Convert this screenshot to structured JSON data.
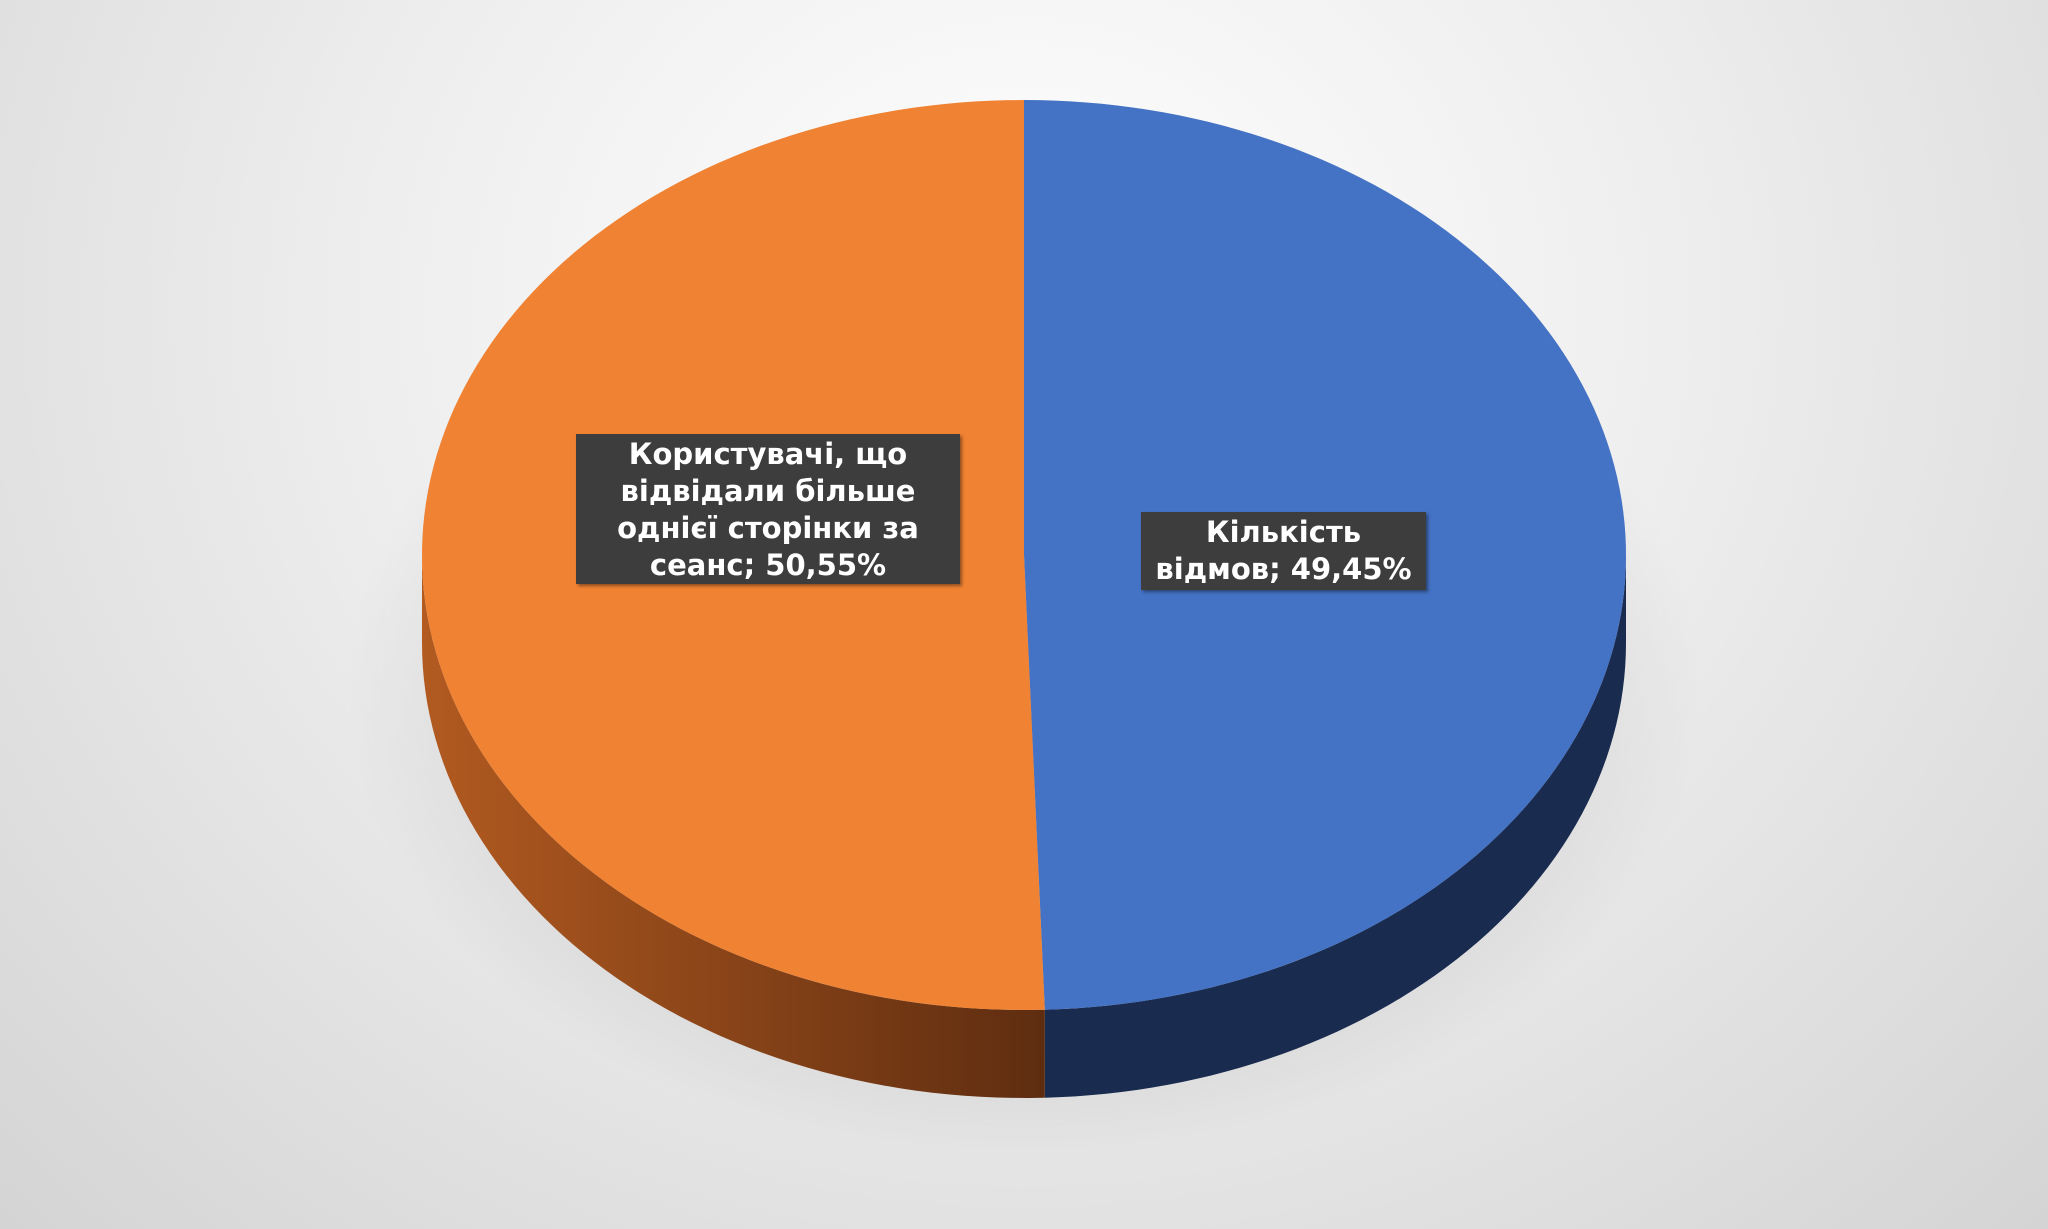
{
  "chart_data": {
    "type": "pie",
    "style": "3d",
    "title": "",
    "slices": [
      {
        "label": "Кількість відмов",
        "value": 49.45,
        "display": "49,45%",
        "color": "#4472c4",
        "side_color": "#192b4f"
      },
      {
        "label": "Користувачі, що відвідали більше однієї сторінки за сеанс",
        "value": 50.55,
        "display": "50,55%",
        "color": "#f08233",
        "side_color": "#8a4417"
      }
    ],
    "start": "top",
    "direction": "clockwise",
    "legend": "none",
    "data_labels": [
      "Кількість відмов; 49,45%",
      "Користувачі, що відвідали більше однієї сторінки за сеанс; 50,55%"
    ]
  }
}
